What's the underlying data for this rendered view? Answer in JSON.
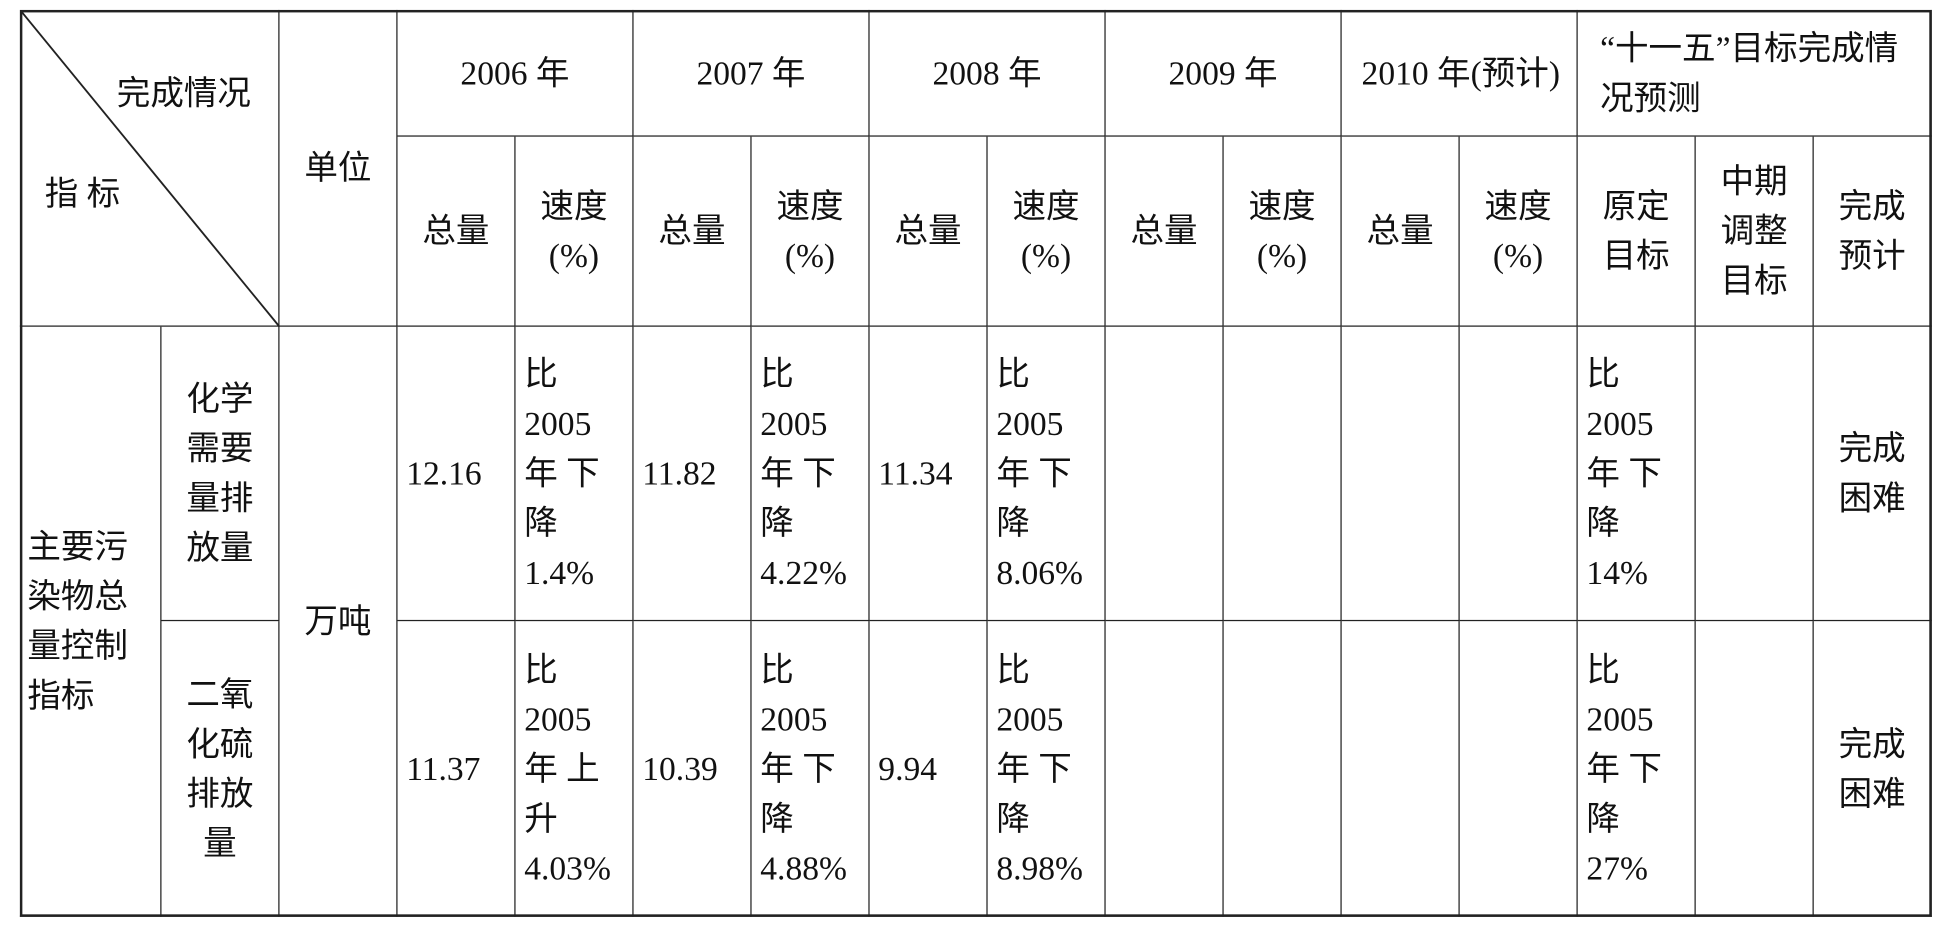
{
  "table": {
    "header": {
      "corner_top": "完成情况",
      "corner_bottom": "指 标",
      "unit": "单位",
      "years": [
        "2006 年",
        "2007 年",
        "2008 年",
        "2009 年",
        "2010 年(预计)"
      ],
      "target_group": "“十一五”目标完成情况预测",
      "subheaders": [
        "总量",
        "速度\n(%)",
        "总量",
        "速度\n(%)",
        "总量",
        "速度\n(%)",
        "总量",
        "速度\n(%)",
        "总量",
        "速度\n(%)",
        "原定目标",
        "中期调整目标",
        "完成预计"
      ]
    },
    "group": "主要污染物总量控制指标",
    "unit": "万吨",
    "rows": [
      {
        "indicator": "化学需要量排放量",
        "cells": [
          "12.16",
          "比\n2005\n年 下\n降\n1.4%",
          "11.82",
          "比\n2005\n年 下\n降\n4.22%",
          "11.34",
          "比\n2005\n年 下\n降\n8.06%",
          null,
          null,
          null,
          null,
          "比\n2005\n年 下\n降\n14%",
          null,
          "完成困难"
        ]
      },
      {
        "indicator": "二氧化硫排放量",
        "cells": [
          "11.37",
          "比\n2005\n年 上\n升\n4.03%",
          "10.39",
          "比\n2005\n年 下\n降\n4.88%",
          "9.94",
          "比\n2005\n年 下\n降\n8.98%",
          null,
          null,
          null,
          null,
          "比\n2005\n年 下\n降\n27%",
          null,
          "完成困难"
        ]
      }
    ]
  }
}
